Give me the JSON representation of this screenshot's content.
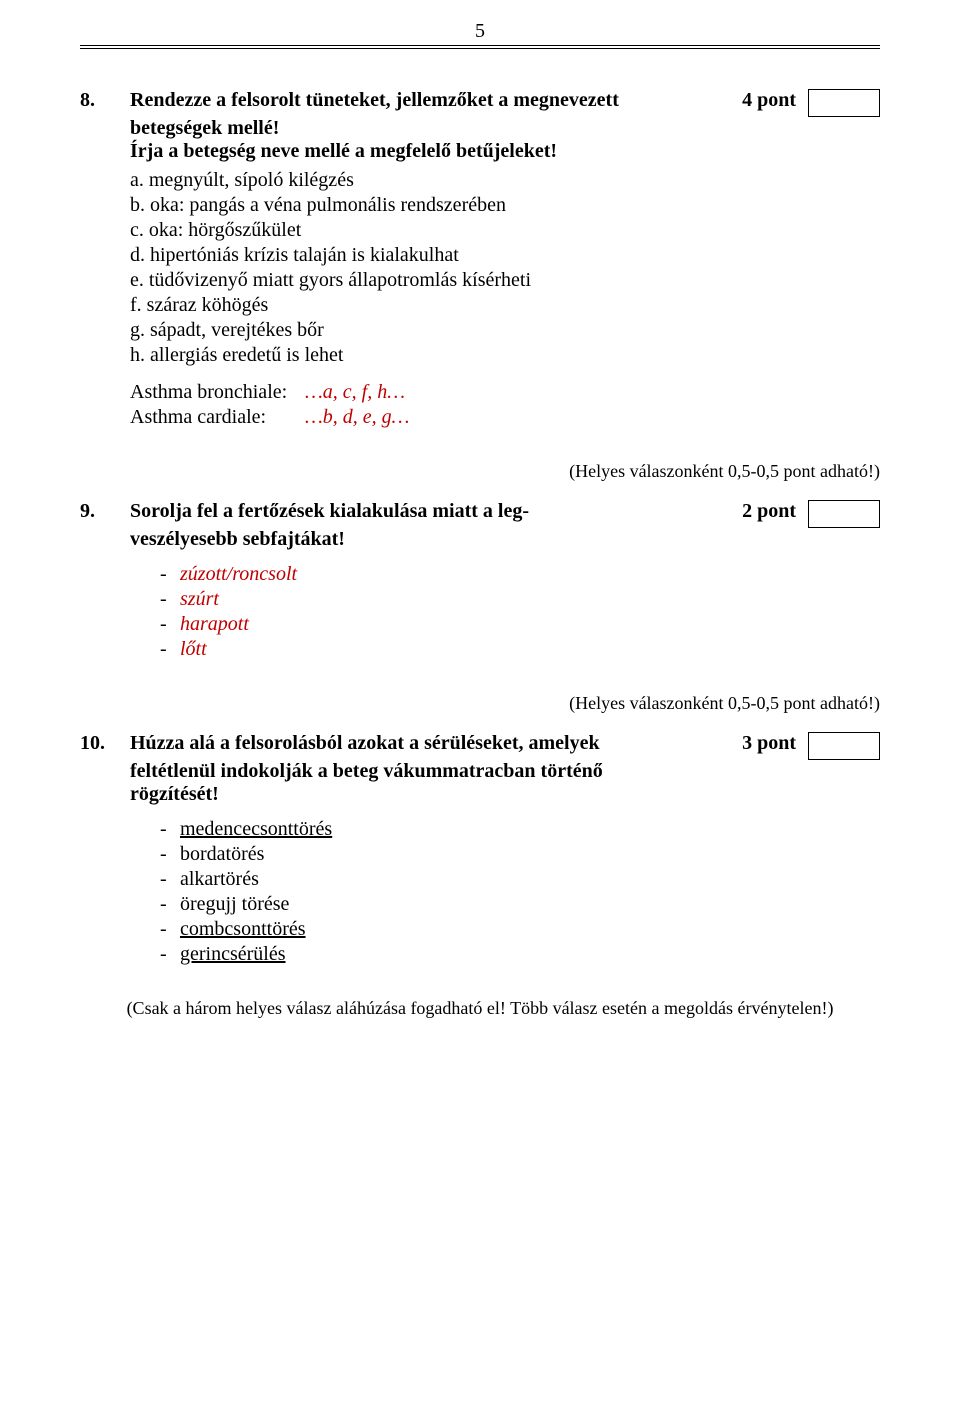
{
  "pageNumber": "5",
  "q8": {
    "num": "8.",
    "title_line1": "Rendezze a felsorolt tüneteket, jellemzőket a megnevezett",
    "title_line2": "betegségek mellé!",
    "title_line3": "Írja a betegség neve mellé a megfelelő betűjeleket!",
    "points": "4 pont",
    "opts": {
      "a": "a. megnyúlt, sípoló kilégzés",
      "b": "b. oka: pangás a véna pulmonális rendszerében",
      "c": "c. oka: hörgőszűkület",
      "d": "d. hipertóniás krízis talaján is kialakulhat",
      "e": "e. tüdővizenyő miatt gyors állapotromlás kísérheti",
      "f": "f. száraz köhögés",
      "g": "g. sápadt, verejtékes bőr",
      "h": "h. allergiás eredetű is lehet"
    },
    "ans1_label": "Asthma bronchiale:",
    "ans1_val": "…a, c, f, h…",
    "ans2_label": "Asthma cardiale:",
    "ans2_val": "…b, d, e, g…",
    "scoring": "(Helyes válaszonként 0,5-0,5 pont adható!)"
  },
  "q9": {
    "num": "9.",
    "title_line1": "Sorolja fel a fertőzések kialakulása miatt a leg-",
    "title_line2": "veszélyesebb sebfajtákat!",
    "points": "2 pont",
    "items": {
      "a": "zúzott/roncsolt",
      "b": "szúrt",
      "c": "harapott",
      "d": "lőtt"
    },
    "scoring": "(Helyes válaszonként 0,5-0,5 pont adható!)"
  },
  "q10": {
    "num": "10.",
    "title_line1": "Húzza alá a felsorolásból azokat a sérüléseket, amelyek",
    "title_line2": "feltétlenül indokolják a beteg vákummatracban történő",
    "title_line3": "rögzítését!",
    "points": "3 pont",
    "items": {
      "a": "medencecsonttörés",
      "b": "bordatörés",
      "c": "alkartörés",
      "d": "öregujj törése",
      "e": "combcsonttörés",
      "f": "gerincsérülés"
    },
    "note": "(Csak a három helyes válasz aláhúzása fogadható el! Több válasz esetén a megoldás érvénytelen!)"
  }
}
